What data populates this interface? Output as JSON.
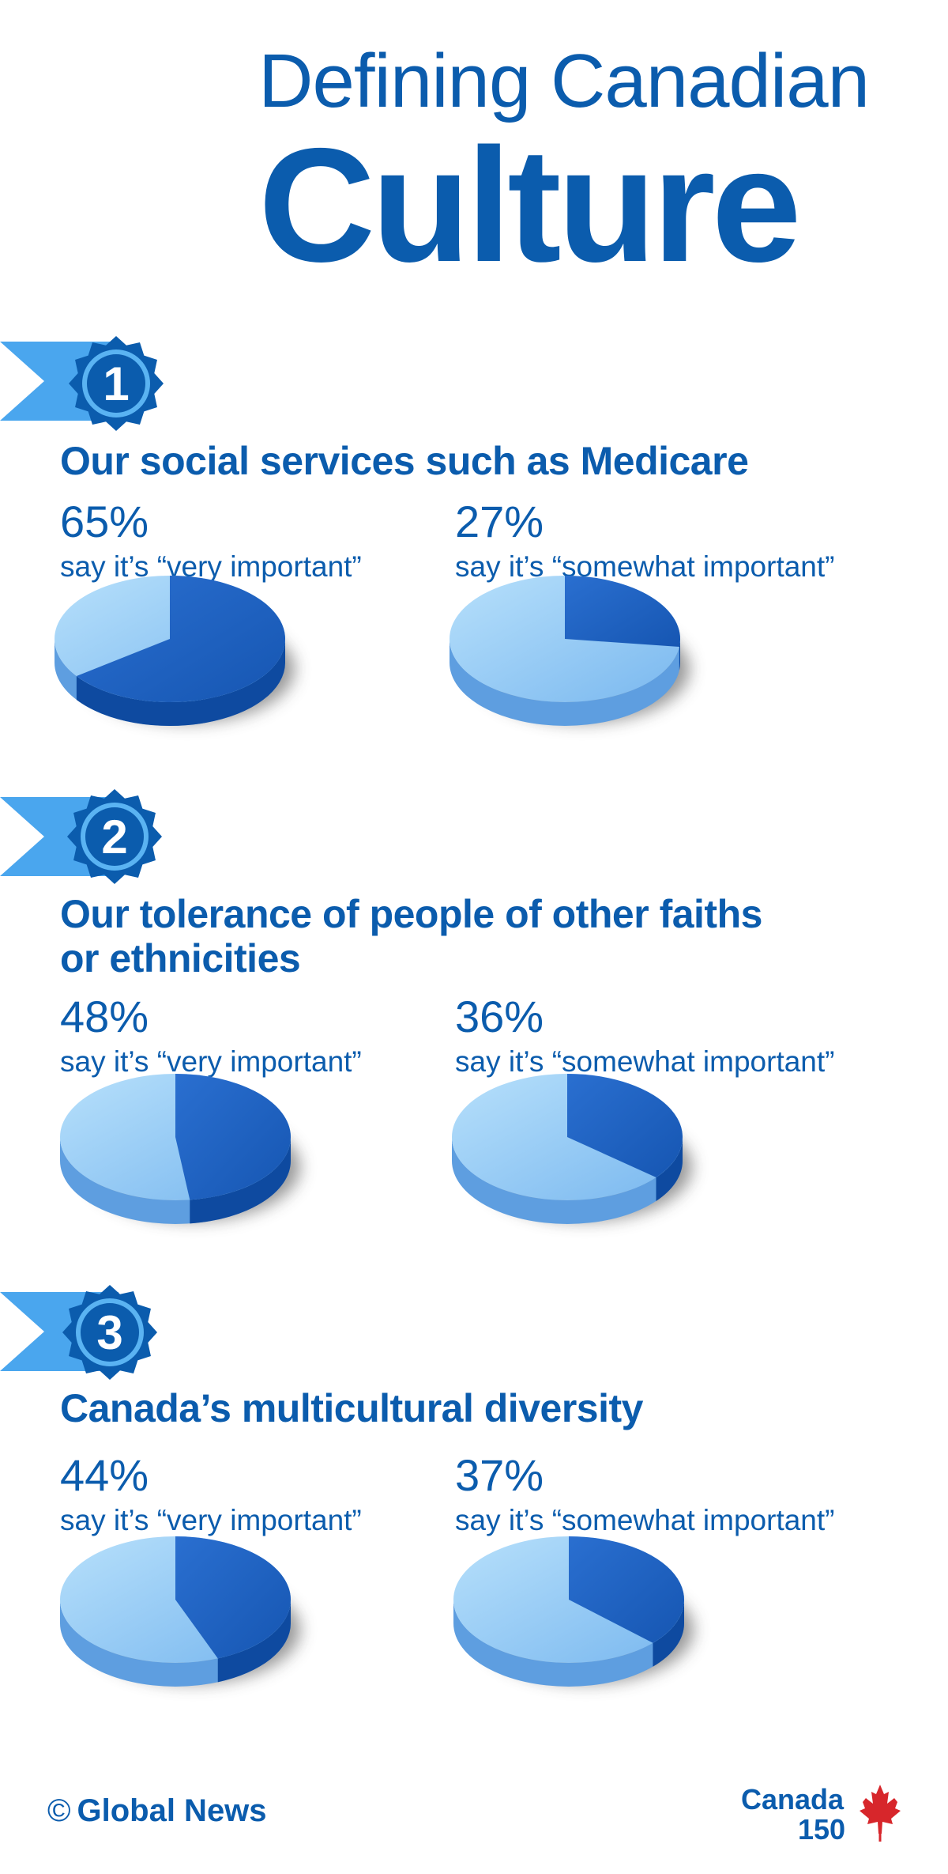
{
  "header": {
    "title_line1": "Defining Canadian",
    "title_line2": "Culture"
  },
  "colors": {
    "brand_blue": "#0b5cad",
    "dark_slice": "#1d61c4",
    "light_slice": "#8fc8f5",
    "ribbon": "#4aa6ee"
  },
  "sections": [
    {
      "number": "1",
      "title_lines": [
        "Our social services such as Medicare"
      ],
      "stats": [
        {
          "value": "65%",
          "label": "say it’s “very important”"
        },
        {
          "value": "27%",
          "label": "say it’s “somewhat important”"
        }
      ]
    },
    {
      "number": "2",
      "title_lines": [
        "Our tolerance of people of other faiths",
        "or ethnicities"
      ],
      "stats": [
        {
          "value": "48%",
          "label": "say it’s “very important”"
        },
        {
          "value": "36%",
          "label": "say it’s “somewhat important”"
        }
      ]
    },
    {
      "number": "3",
      "title_lines": [
        "Canada’s multicultural diversity"
      ],
      "stats": [
        {
          "value": "44%",
          "label": "say it’s “very important”"
        },
        {
          "value": "37%",
          "label": "say it’s “somewhat important”"
        }
      ]
    }
  ],
  "chart_data": [
    {
      "type": "pie",
      "title": "Our social services such as Medicare",
      "series": [
        {
          "name": "very important",
          "values": [
            65,
            35
          ]
        }
      ]
    },
    {
      "type": "pie",
      "title": "Our social services such as Medicare",
      "series": [
        {
          "name": "somewhat important",
          "values": [
            27,
            73
          ]
        }
      ]
    },
    {
      "type": "pie",
      "title": "Our tolerance of people of other faiths or ethnicities",
      "series": [
        {
          "name": "very important",
          "values": [
            48,
            52
          ]
        }
      ]
    },
    {
      "type": "pie",
      "title": "Our tolerance of people of other faiths or ethnicities",
      "series": [
        {
          "name": "somewhat important",
          "values": [
            36,
            64
          ]
        }
      ]
    },
    {
      "type": "pie",
      "title": "Canada’s multicultural diversity",
      "series": [
        {
          "name": "very important",
          "values": [
            44,
            56
          ]
        }
      ]
    },
    {
      "type": "pie",
      "title": "Canada’s multicultural diversity",
      "series": [
        {
          "name": "somewhat important",
          "values": [
            37,
            63
          ]
        }
      ]
    }
  ],
  "footer": {
    "copyright_symbol": "©",
    "source": "Global News",
    "logo_line1": "Canada",
    "logo_line2": "150",
    "logo_icon": "maple-leaf-icon"
  }
}
